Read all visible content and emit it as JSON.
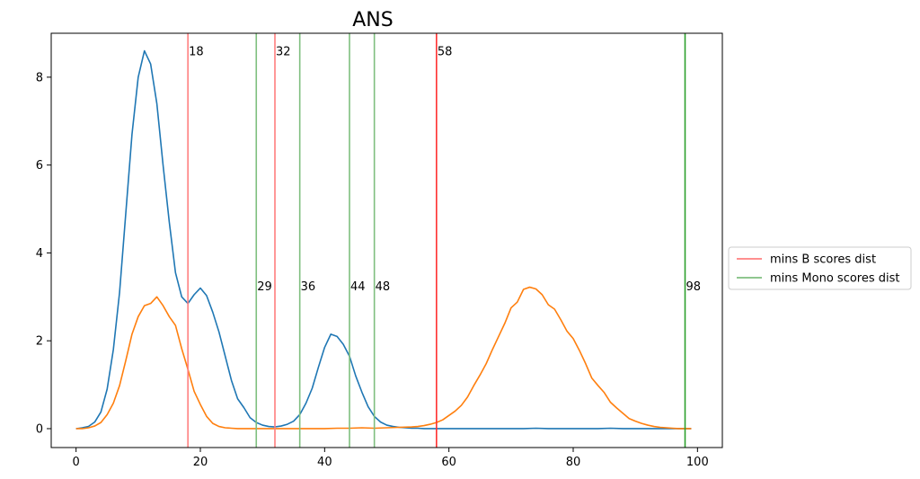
{
  "chart_data": {
    "type": "line",
    "title": "ANS",
    "xlabel": "",
    "ylabel": "",
    "xlim": [
      -4,
      104
    ],
    "ylim": [
      -0.43,
      9.0
    ],
    "xticks": [
      0,
      20,
      40,
      60,
      80,
      100
    ],
    "yticks": [
      0,
      2,
      4,
      6,
      8
    ],
    "grid": false,
    "legend_position": "right",
    "series": [
      {
        "color": "#1f77b4",
        "x": [
          0,
          1,
          2,
          3,
          4,
          5,
          6,
          7,
          8,
          9,
          10,
          11,
          12,
          13,
          14,
          15,
          16,
          17,
          18,
          19,
          20,
          21,
          22,
          23,
          24,
          25,
          26,
          27,
          28,
          29,
          30,
          31,
          32,
          33,
          34,
          35,
          36,
          37,
          38,
          39,
          40,
          41,
          42,
          43,
          44,
          45,
          46,
          47,
          48,
          49,
          50,
          51,
          52,
          53,
          54,
          55,
          56,
          57,
          58,
          59,
          60,
          62,
          64,
          66,
          68,
          70,
          72,
          74,
          76,
          78,
          80,
          82,
          84,
          86,
          88,
          90,
          92,
          94,
          96,
          98,
          99
        ],
        "y": [
          0,
          0.02,
          0.05,
          0.15,
          0.38,
          0.9,
          1.8,
          3.1,
          4.9,
          6.7,
          8.0,
          8.6,
          8.3,
          7.4,
          6.0,
          4.7,
          3.55,
          3.0,
          2.85,
          3.05,
          3.2,
          3.03,
          2.65,
          2.2,
          1.65,
          1.1,
          0.68,
          0.48,
          0.25,
          0.14,
          0.08,
          0.05,
          0.04,
          0.06,
          0.1,
          0.17,
          0.32,
          0.58,
          0.92,
          1.4,
          1.85,
          2.15,
          2.1,
          1.92,
          1.65,
          1.2,
          0.83,
          0.5,
          0.28,
          0.15,
          0.08,
          0.05,
          0.03,
          0.02,
          0.01,
          0.01,
          0,
          0,
          0,
          0,
          0,
          0,
          0,
          0,
          0,
          0,
          0,
          0.01,
          0,
          0,
          0,
          0,
          0,
          0.01,
          0,
          0,
          0,
          0,
          0,
          0,
          0
        ]
      },
      {
        "color": "#ff7f0e",
        "x": [
          0,
          1,
          2,
          3,
          4,
          5,
          6,
          7,
          8,
          9,
          10,
          11,
          12,
          13,
          14,
          15,
          16,
          17,
          18,
          19,
          20,
          21,
          22,
          23,
          24,
          25,
          26,
          28,
          30,
          32,
          34,
          36,
          38,
          40,
          42,
          44,
          46,
          48,
          50,
          52,
          54,
          55,
          56,
          57,
          58,
          59,
          60,
          61,
          62,
          63,
          64,
          65,
          66,
          67,
          68,
          69,
          70,
          71,
          72,
          73,
          74,
          75,
          76,
          77,
          78,
          79,
          80,
          81,
          82,
          83,
          84,
          85,
          86,
          87,
          88,
          89,
          90,
          91,
          92,
          93,
          94,
          95,
          96,
          97,
          98,
          99
        ],
        "y": [
          0,
          0,
          0.02,
          0.06,
          0.14,
          0.32,
          0.58,
          0.98,
          1.55,
          2.15,
          2.55,
          2.8,
          2.85,
          3.0,
          2.8,
          2.55,
          2.35,
          1.82,
          1.35,
          0.85,
          0.55,
          0.28,
          0.12,
          0.05,
          0.02,
          0.01,
          0,
          0,
          0,
          0,
          0,
          0,
          0,
          0,
          0.01,
          0.01,
          0.02,
          0.01,
          0.02,
          0.03,
          0.04,
          0.05,
          0.07,
          0.1,
          0.14,
          0.2,
          0.3,
          0.4,
          0.53,
          0.72,
          0.98,
          1.22,
          1.48,
          1.8,
          2.1,
          2.4,
          2.75,
          2.88,
          3.17,
          3.22,
          3.18,
          3.05,
          2.82,
          2.72,
          2.48,
          2.22,
          2.05,
          1.78,
          1.48,
          1.15,
          0.98,
          0.82,
          0.6,
          0.47,
          0.35,
          0.23,
          0.17,
          0.12,
          0.08,
          0.05,
          0.03,
          0.02,
          0.01,
          0,
          0,
          0
        ]
      }
    ],
    "vlines": [
      {
        "x": 18,
        "label": "18",
        "group": "B",
        "color": "#ff7f7f",
        "label_y": 8.6
      },
      {
        "x": 32,
        "label": "32",
        "group": "B",
        "color": "#ff7f7f",
        "label_y": 8.6
      },
      {
        "x": 58,
        "label": "58",
        "group": "B",
        "color": "#ff3030",
        "label_y": 8.6
      },
      {
        "x": 29,
        "label": "29",
        "group": "Mono",
        "color": "#7fbf7f",
        "label_y": 3.25
      },
      {
        "x": 36,
        "label": "36",
        "group": "Mono",
        "color": "#7fbf7f",
        "label_y": 3.25
      },
      {
        "x": 44,
        "label": "44",
        "group": "Mono",
        "color": "#7fbf7f",
        "label_y": 3.25
      },
      {
        "x": 48,
        "label": "48",
        "group": "Mono",
        "color": "#7fbf7f",
        "label_y": 3.25
      },
      {
        "x": 98,
        "label": "98",
        "group": "Mono",
        "color": "#2ca02c",
        "label_y": 3.25
      }
    ],
    "legend": [
      {
        "label": "mins B scores dist",
        "color": "#ff7f7f"
      },
      {
        "label": "mins Mono scores dist",
        "color": "#7fbf7f"
      }
    ]
  }
}
